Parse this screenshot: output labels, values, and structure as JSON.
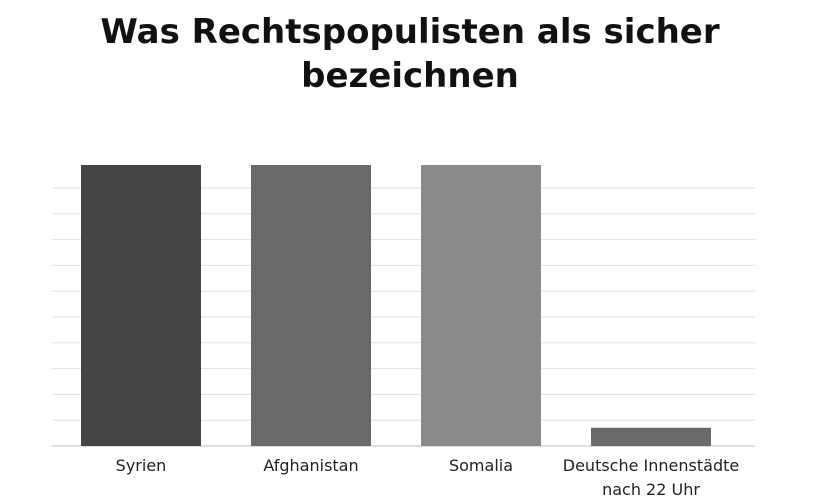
{
  "chart_data": {
    "type": "bar",
    "title": "Was Rechtspopulisten als sicher bezeichnen",
    "xlabel": "",
    "ylabel": "",
    "categories": [
      "Syrien",
      "Afghanistan",
      "Somalia",
      "Deutsche Innenstädte nach 22 Uhr"
    ],
    "values": [
      100,
      100,
      100,
      6.5
    ],
    "bar_colors": [
      "#454545",
      "#6a6a6a",
      "#8a8a8a",
      "#6a6a6a"
    ],
    "ylim": [
      0,
      100
    ],
    "grid": true,
    "legend": "none"
  }
}
